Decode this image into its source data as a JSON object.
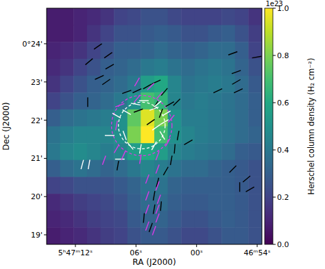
{
  "chart_data": {
    "type": "heatmap",
    "x_label": "RA (J2000)",
    "y_label": "Dec (J2000)",
    "xlim": [
      74.85,
      53.53
    ],
    "ylim": [
      18.75,
      24.93
    ],
    "xticks": [
      {
        "value": 72,
        "label": "5ʰ47ᵐ12ˢ"
      },
      {
        "value": 66,
        "label": "06ˢ"
      },
      {
        "value": 60,
        "label": "00ˢ"
      },
      {
        "value": 54,
        "label": "46ᵐ54ˢ"
      }
    ],
    "yticks": [
      {
        "value": 24,
        "label": "0°24'"
      },
      {
        "value": 23,
        "label": "23'"
      },
      {
        "value": 22,
        "label": "22'"
      },
      {
        "value": 21,
        "label": "21'"
      },
      {
        "value": 20,
        "label": "20'"
      },
      {
        "value": 19,
        "label": "19'"
      }
    ],
    "color": "viridis",
    "cells": [
      [
        0.08,
        0.08,
        0.1,
        0.12,
        0.15,
        0.2,
        0.22,
        0.25,
        0.25,
        0.22,
        0.2,
        0.2,
        0.2,
        0.22,
        0.2,
        0.15
      ],
      [
        0.08,
        0.08,
        0.1,
        0.15,
        0.2,
        0.25,
        0.25,
        0.28,
        0.3,
        0.28,
        0.25,
        0.25,
        0.28,
        0.3,
        0.25,
        0.18
      ],
      [
        0.1,
        0.12,
        0.15,
        0.2,
        0.25,
        0.3,
        0.3,
        0.32,
        0.35,
        0.32,
        0.3,
        0.32,
        0.35,
        0.35,
        0.3,
        0.2
      ],
      [
        0.12,
        0.15,
        0.2,
        0.25,
        0.3,
        0.32,
        0.35,
        0.4,
        0.42,
        0.38,
        0.35,
        0.38,
        0.4,
        0.38,
        0.32,
        0.25
      ],
      [
        0.15,
        0.2,
        0.25,
        0.3,
        0.32,
        0.35,
        0.4,
        0.55,
        0.6,
        0.45,
        0.38,
        0.4,
        0.42,
        0.4,
        0.35,
        0.28
      ],
      [
        0.2,
        0.25,
        0.3,
        0.32,
        0.35,
        0.4,
        0.5,
        0.7,
        0.65,
        0.45,
        0.4,
        0.42,
        0.4,
        0.38,
        0.35,
        0.3
      ],
      [
        0.3,
        0.35,
        0.38,
        0.4,
        0.42,
        0.5,
        0.75,
        0.95,
        0.8,
        0.5,
        0.42,
        0.42,
        0.4,
        0.38,
        0.35,
        0.3
      ],
      [
        0.38,
        0.42,
        0.45,
        0.45,
        0.45,
        0.5,
        0.8,
        1.0,
        0.7,
        0.5,
        0.45,
        0.42,
        0.4,
        0.38,
        0.35,
        0.32
      ],
      [
        0.4,
        0.45,
        0.48,
        0.45,
        0.42,
        0.45,
        0.55,
        0.6,
        0.55,
        0.45,
        0.42,
        0.4,
        0.38,
        0.35,
        0.3,
        0.28
      ],
      [
        0.3,
        0.35,
        0.38,
        0.35,
        0.32,
        0.35,
        0.4,
        0.45,
        0.42,
        0.38,
        0.35,
        0.35,
        0.32,
        0.3,
        0.28,
        0.25
      ],
      [
        0.2,
        0.22,
        0.25,
        0.25,
        0.25,
        0.28,
        0.32,
        0.38,
        0.38,
        0.32,
        0.3,
        0.3,
        0.3,
        0.3,
        0.28,
        0.25
      ],
      [
        0.12,
        0.15,
        0.18,
        0.2,
        0.22,
        0.25,
        0.3,
        0.35,
        0.35,
        0.3,
        0.28,
        0.28,
        0.3,
        0.3,
        0.28,
        0.25
      ],
      [
        0.1,
        0.12,
        0.15,
        0.18,
        0.2,
        0.22,
        0.28,
        0.32,
        0.32,
        0.28,
        0.25,
        0.25,
        0.28,
        0.3,
        0.28,
        0.25
      ],
      [
        0.08,
        0.1,
        0.12,
        0.15,
        0.18,
        0.2,
        0.25,
        0.28,
        0.28,
        0.25,
        0.22,
        0.22,
        0.25,
        0.28,
        0.28,
        0.25
      ]
    ],
    "colorbar": {
      "label": "Herschel column density (H₂ cm⁻²)",
      "offset_label": "1e23",
      "range": [
        0,
        1
      ],
      "ticks": [
        {
          "value": 0,
          "label": "0.0"
        },
        0.2,
        0.4,
        0.6,
        0.8,
        {
          "value": 1,
          "label": "1.0"
        }
      ]
    },
    "series": [
      {
        "type": "vector",
        "color": "#000000",
        "x": [
          69.77,
          68.75,
          70.65,
          70.78,
          68.61,
          69.63,
          68.95,
          66.92,
          65.9,
          64.88,
          64.0,
          63.19,
          64.07,
          63.53,
          62.65,
          61.97,
          57.9,
          56.07,
          56.07,
          55.87,
          61.83,
          62.17,
          62.51,
          63.05,
          63.87,
          64.21,
          64.21,
          63.53,
          65.22,
          64.54,
          56.41,
          55.05,
          55.73,
          54.71,
          54.04,
          56.41,
          60.82,
          64.54,
          65.77,
          67.8
        ],
        "y": [
          23.93,
          23.7,
          23.53,
          22.47,
          23.4,
          23.12,
          23.0,
          22.74,
          22.77,
          22.88,
          23.0,
          22.74,
          22.39,
          22.18,
          22.42,
          22.47,
          22.77,
          23.26,
          23.0,
          22.77,
          21.6,
          21.25,
          20.95,
          20.67,
          20.37,
          20.02,
          19.67,
          19.75,
          19.44,
          19.19,
          20.72,
          20.46,
          20.25,
          20.19,
          23.65,
          23.75,
          21.42,
          21.95,
          22.25,
          20.81
        ],
        "angle": [
          125,
          125,
          130,
          0,
          120,
          115,
          125,
          110,
          115,
          120,
          115,
          140,
          150,
          160,
          120,
          135,
          115,
          110,
          120,
          115,
          170,
          175,
          170,
          150,
          165,
          170,
          170,
          175,
          175,
          160,
          135,
          130,
          0,
          120,
          100,
          110,
          120,
          125,
          110,
          170
        ]
      },
      {
        "type": "vector",
        "color": "#ffffff",
        "x": [
          66.92,
          66.04,
          65.22,
          63.87,
          63.19,
          63.39,
          64.21,
          65.56,
          66.58,
          67.12,
          67.93,
          68.61,
          71.32,
          70.65,
          67.6,
          64.21,
          62.99,
          64.0
        ],
        "y": [
          22.21,
          22.42,
          22.51,
          22.42,
          21.95,
          21.6,
          21.33,
          21.25,
          21.33,
          21.6,
          22.12,
          21.6,
          20.84,
          20.84,
          20.98,
          22.3,
          22.18,
          21.81
        ],
        "angle": [
          60,
          80,
          90,
          130,
          120,
          30,
          150,
          170,
          40,
          20,
          60,
          90,
          165,
          170,
          90,
          110,
          120,
          125
        ]
      },
      {
        "type": "vector",
        "color": "#d93be6",
        "x": [
          65.9,
          64.54,
          63.66,
          65.9,
          67.6,
          67.93,
          67.93,
          67.26,
          65.56,
          63.87,
          62.85,
          62.51,
          69.16,
          63.87,
          64.88,
          63.87,
          64.88,
          63.73,
          64.88,
          63.87,
          64.88,
          64.21,
          63.87
        ],
        "y": [
          23.0,
          22.88,
          22.65,
          22.56,
          22.39,
          21.86,
          21.25,
          21.07,
          20.98,
          21.07,
          21.42,
          22.04,
          20.95,
          20.72,
          20.46,
          20.28,
          20.02,
          19.93,
          19.67,
          19.44,
          19.23,
          19.11,
          19.67
        ],
        "angle": [
          150,
          135,
          140,
          140,
          110,
          170,
          150,
          155,
          170,
          160,
          150,
          140,
          160,
          160,
          160,
          160,
          160,
          160,
          160,
          160,
          160,
          160,
          160
        ]
      }
    ],
    "circles": [
      {
        "x": 65.43,
        "y": 21.86,
        "radius": 0.61,
        "color": "#ffffff",
        "line_style": "dashed"
      },
      {
        "x": 65.43,
        "y": 21.86,
        "radius": 0.79,
        "color": "#d93be6",
        "line_style": "dashed"
      }
    ]
  }
}
